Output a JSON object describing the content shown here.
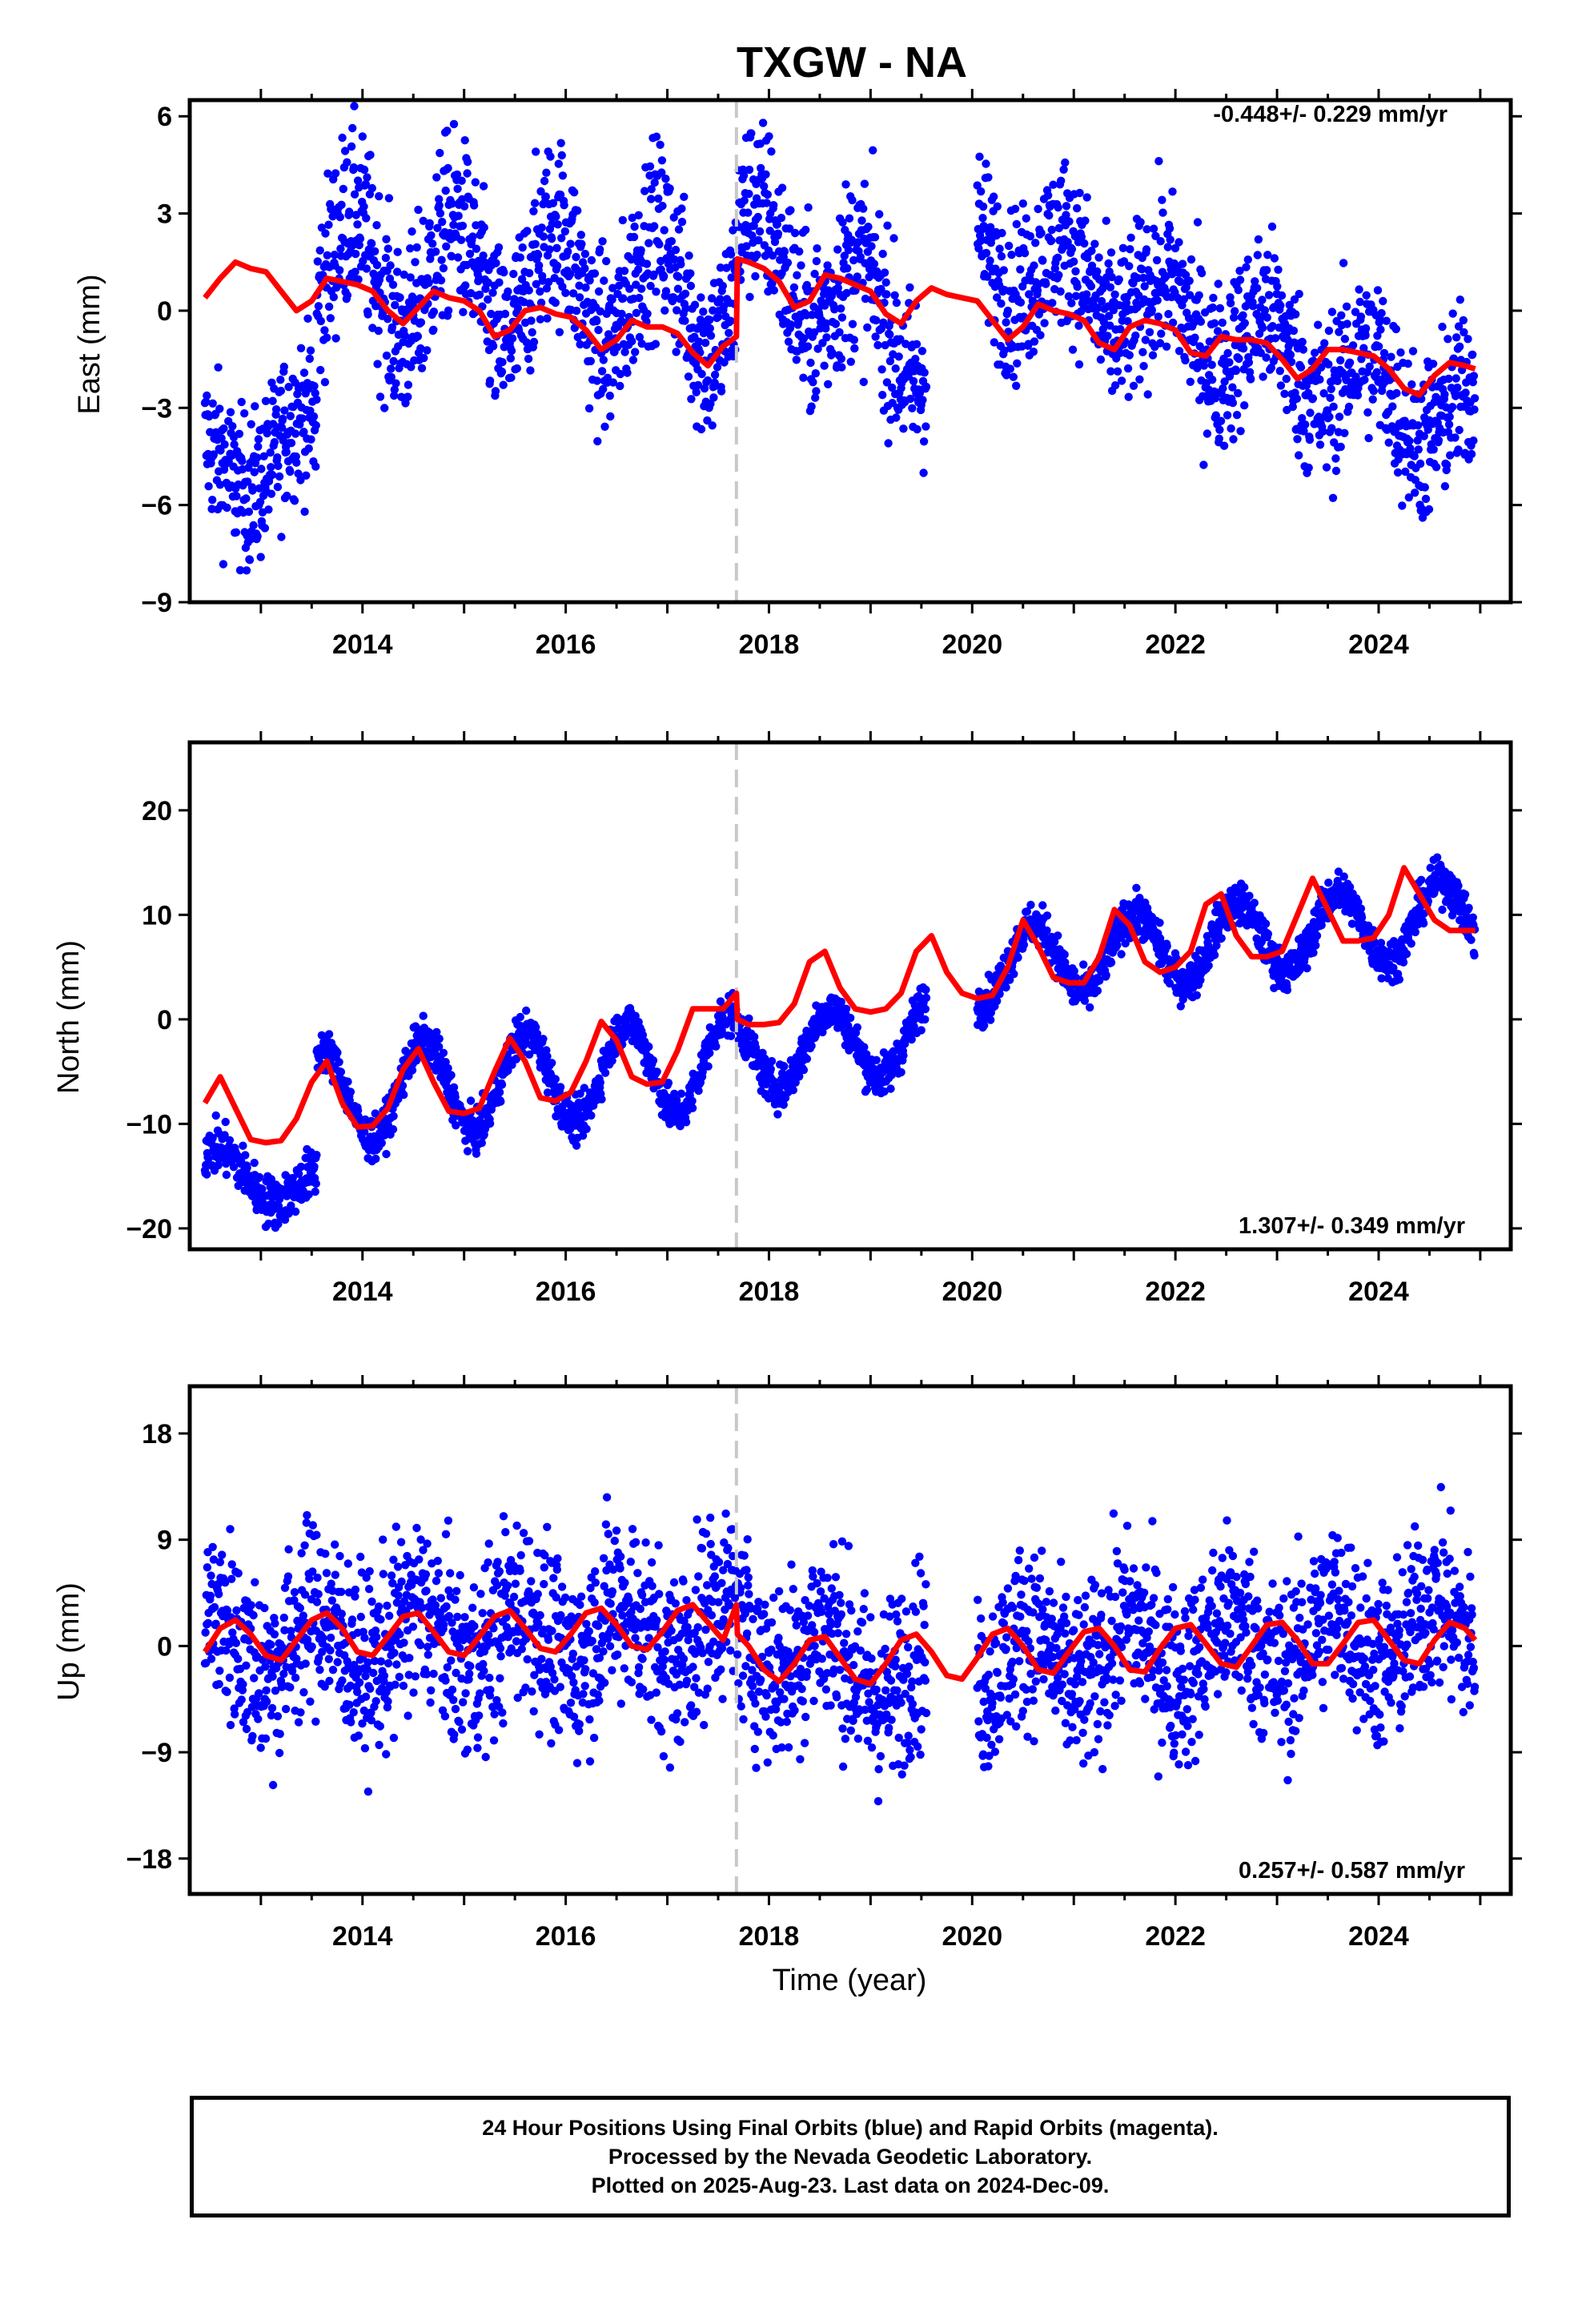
{
  "title": "TXGW - NA",
  "colors": {
    "data": "#0000ff",
    "model": "#ff0000",
    "offset": "#c8c8c8",
    "axes": "#000000"
  },
  "xlabel": "Time (year)",
  "footer": {
    "line1": "24 Hour Positions Using Final Orbits (blue) and Rapid Orbits (magenta).",
    "line2": "Processed by the Nevada Geodetic Laboratory.",
    "line3": "Plotted on 2025-Aug-23. Last data on 2024-Dec-09."
  },
  "chart_data": [
    {
      "type": "scatter",
      "name": "east",
      "ylabel": "East (mm)",
      "rate": "-0.448+/- 0.229 mm/yr",
      "xlim": [
        2012.3,
        2025.3
      ],
      "ylim": [
        -9,
        6.5
      ],
      "yticks": [
        6,
        3,
        0,
        -3,
        -6,
        -9
      ],
      "yticklabels": [
        "6",
        "3",
        "0",
        "−3",
        "−6",
        "−9"
      ],
      "xticks": [
        2014,
        2016,
        2018,
        2020,
        2022,
        2024
      ],
      "offset_epoch": 2017.68,
      "model": {
        "x": [
          2012.45,
          2012.6,
          2012.75,
          2012.9,
          2013.05,
          2013.2,
          2013.35,
          2013.5,
          2013.65,
          2013.8,
          2013.95,
          2014.1,
          2014.25,
          2014.4,
          2014.55,
          2014.7,
          2014.85,
          2015.0,
          2015.15,
          2015.3,
          2015.45,
          2015.6,
          2015.75,
          2015.9,
          2016.05,
          2016.2,
          2016.35,
          2016.5,
          2016.65,
          2016.8,
          2016.95,
          2017.1,
          2017.25,
          2017.4,
          2017.55,
          2017.68,
          2017.69,
          2017.8,
          2017.95,
          2018.1,
          2018.25,
          2018.4,
          2018.55,
          2018.7,
          2018.85,
          2019.0,
          2019.15,
          2019.3,
          2019.45,
          2019.6,
          2019.75,
          2019.9,
          2020.05,
          2020.2,
          2020.35,
          2020.5,
          2020.65,
          2020.8,
          2020.95,
          2021.1,
          2021.25,
          2021.4,
          2021.55,
          2021.7,
          2021.85,
          2022.0,
          2022.15,
          2022.3,
          2022.45,
          2022.6,
          2022.75,
          2022.9,
          2023.05,
          2023.2,
          2023.35,
          2023.5,
          2023.65,
          2023.8,
          2023.95,
          2024.1,
          2024.25,
          2024.4,
          2024.55,
          2024.7,
          2024.85,
          2024.95
        ],
        "y": [
          0.4,
          1.0,
          1.5,
          1.3,
          1.2,
          0.6,
          0.0,
          0.3,
          1.0,
          0.9,
          0.8,
          0.6,
          0.0,
          -0.4,
          0.1,
          0.6,
          0.4,
          0.3,
          0.0,
          -0.8,
          -0.6,
          0.0,
          0.1,
          -0.1,
          -0.2,
          -0.6,
          -1.2,
          -0.9,
          -0.3,
          -0.5,
          -0.5,
          -0.7,
          -1.3,
          -1.7,
          -1.1,
          -0.8,
          1.6,
          1.5,
          1.3,
          0.9,
          0.1,
          0.3,
          1.1,
          1.0,
          0.8,
          0.6,
          -0.1,
          -0.4,
          0.3,
          0.7,
          0.5,
          0.4,
          0.3,
          -0.3,
          -0.9,
          -0.5,
          0.2,
          0.0,
          -0.1,
          -0.3,
          -1.0,
          -1.2,
          -0.5,
          -0.3,
          -0.4,
          -0.6,
          -1.3,
          -1.4,
          -0.8,
          -0.9,
          -0.9,
          -1.0,
          -1.5,
          -2.1,
          -1.8,
          -1.2,
          -1.2,
          -1.3,
          -1.4,
          -1.8,
          -2.4,
          -2.6,
          -2.0,
          -1.6,
          -1.7,
          -1.8
        ]
      },
      "data_segments": [
        {
          "x0": 2012.45,
          "x1": 2013.55,
          "trend": [
            -5.0,
            -4.0
          ],
          "amp": 1.0,
          "phase": 0.4,
          "noise": 1.2
        },
        {
          "x0": 2013.55,
          "x1": 2017.68,
          "trend": [
            1.2,
            0.5
          ],
          "amp": 1.8,
          "phase": 0.9,
          "noise": 1.4
        },
        {
          "x0": 2017.69,
          "x1": 2019.55,
          "trend": [
            2.2,
            -1.0
          ],
          "amp": 1.4,
          "phase": 0.9,
          "noise": 1.4
        },
        {
          "x0": 2020.05,
          "x1": 2024.95,
          "trend": [
            2.0,
            -3.5
          ],
          "amp": 1.1,
          "phase": 0.9,
          "noise": 1.3
        }
      ]
    },
    {
      "type": "scatter",
      "name": "north",
      "ylabel": "North (mm)",
      "rate": "1.307+/- 0.349 mm/yr",
      "xlim": [
        2012.3,
        2025.3
      ],
      "ylim": [
        -22,
        26.5
      ],
      "yticks": [
        20,
        10,
        0,
        -10,
        -20
      ],
      "yticklabels": [
        "20",
        "10",
        "0",
        "−10",
        "−20"
      ],
      "xticks": [
        2014,
        2016,
        2018,
        2020,
        2022,
        2024
      ],
      "offset_epoch": 2017.68,
      "model": {
        "x": [
          2012.45,
          2012.6,
          2012.75,
          2012.9,
          2013.05,
          2013.2,
          2013.35,
          2013.5,
          2013.65,
          2013.8,
          2013.95,
          2014.1,
          2014.25,
          2014.4,
          2014.55,
          2014.7,
          2014.85,
          2015.0,
          2015.15,
          2015.3,
          2015.45,
          2015.6,
          2015.75,
          2015.9,
          2016.05,
          2016.2,
          2016.35,
          2016.5,
          2016.65,
          2016.8,
          2016.95,
          2017.1,
          2017.25,
          2017.4,
          2017.55,
          2017.68,
          2017.69,
          2017.8,
          2017.95,
          2018.1,
          2018.25,
          2018.4,
          2018.55,
          2018.7,
          2018.85,
          2019.0,
          2019.15,
          2019.3,
          2019.45,
          2019.6,
          2019.75,
          2019.9,
          2020.05,
          2020.2,
          2020.35,
          2020.5,
          2020.65,
          2020.8,
          2020.95,
          2021.1,
          2021.25,
          2021.4,
          2021.55,
          2021.7,
          2021.85,
          2022.0,
          2022.15,
          2022.3,
          2022.45,
          2022.6,
          2022.75,
          2022.9,
          2023.05,
          2023.2,
          2023.35,
          2023.5,
          2023.65,
          2023.8,
          2023.95,
          2024.1,
          2024.25,
          2024.4,
          2024.55,
          2024.7,
          2024.85,
          2024.95
        ],
        "y": [
          -8.0,
          -5.5,
          -8.5,
          -11.5,
          -11.8,
          -11.6,
          -9.5,
          -6.0,
          -4.0,
          -8.0,
          -10.3,
          -10.2,
          -8.5,
          -4.8,
          -2.8,
          -6.0,
          -8.8,
          -9.0,
          -8.5,
          -5.0,
          -1.8,
          -4.0,
          -7.5,
          -7.8,
          -7.0,
          -4.0,
          -0.2,
          -2.0,
          -5.5,
          -6.2,
          -6.0,
          -3.0,
          1.0,
          1.0,
          1.0,
          2.5,
          0.0,
          -0.5,
          -0.5,
          -0.3,
          1.5,
          5.5,
          6.5,
          3.0,
          1.0,
          0.7,
          1.0,
          2.5,
          6.5,
          8.0,
          4.5,
          2.5,
          2.0,
          2.3,
          5.0,
          9.5,
          7.0,
          4.0,
          3.5,
          3.5,
          6.0,
          10.5,
          9.0,
          5.5,
          4.5,
          5.0,
          6.5,
          11.0,
          12.0,
          8.0,
          6.0,
          6.0,
          6.5,
          10.0,
          13.5,
          10.5,
          7.5,
          7.5,
          7.8,
          10.0,
          14.5,
          12.0,
          9.5,
          8.5,
          8.5,
          8.5
        ]
      },
      "data_segments": [
        {
          "x0": 2012.45,
          "x1": 2013.55,
          "trend": [
            -14.0,
            -16.5
          ],
          "amp": 2.0,
          "phase": 0.6,
          "noise": 1.2
        },
        {
          "x0": 2013.55,
          "x1": 2017.68,
          "trend": [
            -7.5,
            -4.0
          ],
          "amp": 4.5,
          "phase": 0.6,
          "noise": 1.0
        },
        {
          "x0": 2017.69,
          "x1": 2019.55,
          "trend": [
            -3.5,
            -1.5
          ],
          "amp": 3.5,
          "phase": 0.6,
          "noise": 1.0
        },
        {
          "x0": 2020.05,
          "x1": 2024.95,
          "trend": [
            5.0,
            10.0
          ],
          "amp": 3.5,
          "phase": 0.6,
          "noise": 1.0
        }
      ]
    },
    {
      "type": "scatter",
      "name": "up",
      "ylabel": "Up (mm)",
      "rate": "0.257+/- 0.587 mm/yr",
      "xlim": [
        2012.3,
        2025.3
      ],
      "ylim": [
        -21,
        22
      ],
      "yticks": [
        18,
        9,
        0,
        -9,
        -18
      ],
      "yticklabels": [
        "18",
        "9",
        "0",
        "−9",
        "−18"
      ],
      "xticks": [
        2014,
        2016,
        2018,
        2020,
        2022,
        2024
      ],
      "offset_epoch": 2017.68,
      "model": {
        "x": [
          2012.45,
          2012.6,
          2012.75,
          2012.9,
          2013.05,
          2013.2,
          2013.35,
          2013.5,
          2013.65,
          2013.8,
          2013.95,
          2014.1,
          2014.25,
          2014.4,
          2014.55,
          2014.7,
          2014.85,
          2015.0,
          2015.15,
          2015.3,
          2015.45,
          2015.6,
          2015.75,
          2015.9,
          2016.05,
          2016.2,
          2016.35,
          2016.5,
          2016.65,
          2016.8,
          2016.95,
          2017.1,
          2017.25,
          2017.4,
          2017.55,
          2017.68,
          2017.69,
          2017.8,
          2017.95,
          2018.1,
          2018.25,
          2018.4,
          2018.55,
          2018.7,
          2018.85,
          2019.0,
          2019.15,
          2019.3,
          2019.45,
          2019.6,
          2019.75,
          2019.9,
          2020.05,
          2020.2,
          2020.35,
          2020.5,
          2020.65,
          2020.8,
          2020.95,
          2021.1,
          2021.25,
          2021.4,
          2021.55,
          2021.7,
          2021.85,
          2022.0,
          2022.15,
          2022.3,
          2022.45,
          2022.6,
          2022.75,
          2022.9,
          2023.05,
          2023.2,
          2023.35,
          2023.5,
          2023.65,
          2023.8,
          2023.95,
          2024.1,
          2024.25,
          2024.4,
          2024.55,
          2024.7,
          2024.85,
          2024.95
        ],
        "y": [
          -0.5,
          1.5,
          2.2,
          1.0,
          -0.8,
          -1.2,
          0.5,
          2.2,
          2.8,
          1.5,
          -0.5,
          -0.8,
          0.8,
          2.5,
          2.8,
          1.2,
          -0.5,
          -0.8,
          0.8,
          2.5,
          3.0,
          1.5,
          -0.2,
          -0.5,
          1.0,
          2.8,
          3.2,
          1.8,
          0.0,
          -0.3,
          1.2,
          3.0,
          3.5,
          2.0,
          0.5,
          3.5,
          1.0,
          0.0,
          -2.0,
          -3.0,
          -1.5,
          0.5,
          0.8,
          -1.0,
          -2.8,
          -3.2,
          -1.5,
          0.5,
          1.0,
          -0.5,
          -2.5,
          -2.8,
          -1.0,
          1.0,
          1.5,
          0.0,
          -2.0,
          -2.3,
          -0.5,
          1.2,
          1.5,
          0.0,
          -2.0,
          -2.2,
          -0.2,
          1.5,
          1.8,
          0.2,
          -1.5,
          -1.8,
          0.0,
          1.8,
          2.0,
          0.5,
          -1.5,
          -1.5,
          0.2,
          2.0,
          2.2,
          0.5,
          -1.2,
          -1.5,
          0.5,
          2.0,
          1.5,
          0.5
        ]
      },
      "data_segments": [
        {
          "x0": 2012.45,
          "x1": 2017.68,
          "trend": [
            0.0,
            1.5
          ],
          "amp": 2.5,
          "phase": 0.55,
          "noise": 4.0
        },
        {
          "x0": 2017.69,
          "x1": 2019.55,
          "trend": [
            1.0,
            -3.0
          ],
          "amp": 2.5,
          "phase": 0.55,
          "noise": 4.0
        },
        {
          "x0": 2020.05,
          "x1": 2024.95,
          "trend": [
            -1.5,
            1.5
          ],
          "amp": 2.5,
          "phase": 0.55,
          "noise": 3.8
        }
      ]
    }
  ]
}
